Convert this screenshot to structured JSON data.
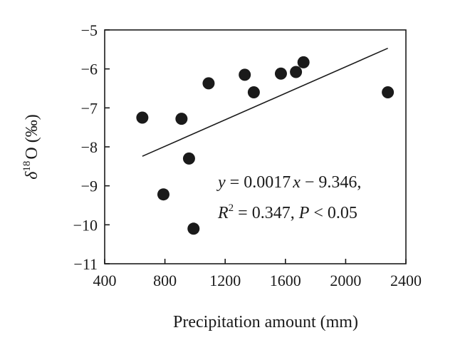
{
  "chart_data": {
    "type": "scatter",
    "title": "",
    "xlabel": "Precipitation amount (mm)",
    "ylabel": {
      "symbol": "δ",
      "superscript": "18",
      "base": "O (‰)"
    },
    "xlim": [
      400,
      2400
    ],
    "ylim": [
      -11,
      -5
    ],
    "xticks": [
      400,
      800,
      1200,
      1600,
      2000,
      2400
    ],
    "yticks": [
      -11,
      -10,
      -9,
      -8,
      -7,
      -6,
      -5
    ],
    "grid": false,
    "points": [
      {
        "x": 650,
        "y": -7.25
      },
      {
        "x": 790,
        "y": -9.22
      },
      {
        "x": 910,
        "y": -7.28
      },
      {
        "x": 960,
        "y": -8.3
      },
      {
        "x": 990,
        "y": -10.1
      },
      {
        "x": 1090,
        "y": -6.37
      },
      {
        "x": 1330,
        "y": -6.15
      },
      {
        "x": 1390,
        "y": -6.6
      },
      {
        "x": 1570,
        "y": -6.12
      },
      {
        "x": 1670,
        "y": -6.08
      },
      {
        "x": 1720,
        "y": -5.83
      },
      {
        "x": 2280,
        "y": -6.6
      }
    ],
    "trendline": {
      "slope": 0.0017,
      "intercept": -9.346,
      "x_range": [
        650,
        2280
      ]
    },
    "annotation": {
      "line1": {
        "y": "y",
        "eq": " = 0.0017",
        "x": "x",
        "rest": " − 9.346,"
      },
      "line2": {
        "r": "R",
        "sup": "2",
        "eq": " = 0.347, ",
        "p": "P",
        "rest": " < 0.05"
      }
    }
  }
}
